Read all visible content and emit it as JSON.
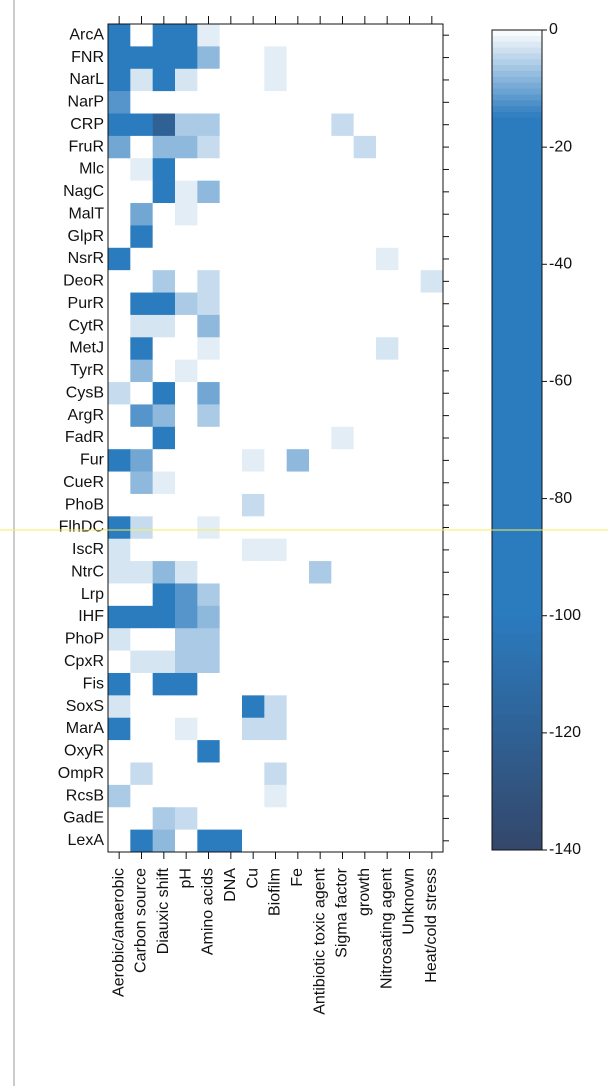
{
  "chart_data": {
    "type": "heatmap",
    "columns": [
      "Aerobic/anaerobic",
      "Carbon source",
      "Diauxic shift",
      "pH",
      "Amino acids",
      "DNA",
      "Cu",
      "Biofilm",
      "Fe",
      "Antibiotic toxic agent",
      "Sigma factor",
      "growth",
      "Nitrosating agent",
      "Unknown",
      "Heat/cold stress"
    ],
    "rows": [
      "ArcA",
      "FNR",
      "NarL",
      "NarP",
      "CRP",
      "FruR",
      "Mlc",
      "NagC",
      "MalT",
      "GlpR",
      "NsrR",
      "DeoR",
      "PurR",
      "CytR",
      "MetJ",
      "TyrR",
      "CysB",
      "ArgR",
      "FadR",
      "Fur",
      "CueR",
      "PhoB",
      "FlhDC",
      "IscR",
      "NtrC",
      "Lrp",
      "IHF",
      "PhoP",
      "CpxR",
      "Fis",
      "SoxS",
      "MarA",
      "OxyR",
      "OmpR",
      "RcsB",
      "GadE",
      "LexA"
    ],
    "values": [
      [
        -30,
        0,
        -30,
        -30,
        -2,
        0,
        0,
        0,
        0,
        0,
        0,
        0,
        0,
        0,
        0
      ],
      [
        -30,
        -30,
        -30,
        -30,
        -8,
        0,
        0,
        -2,
        0,
        0,
        0,
        0,
        0,
        0,
        0
      ],
      [
        -30,
        -3,
        -25,
        -3,
        0,
        0,
        0,
        -2,
        0,
        0,
        0,
        0,
        0,
        0,
        0
      ],
      [
        -12,
        0,
        0,
        0,
        0,
        0,
        0,
        0,
        0,
        0,
        0,
        0,
        0,
        0,
        0
      ],
      [
        -25,
        -25,
        -120,
        -6,
        -6,
        0,
        0,
        0,
        0,
        0,
        -4,
        0,
        0,
        0,
        0
      ],
      [
        -10,
        0,
        -8,
        -8,
        -4,
        0,
        0,
        0,
        0,
        0,
        0,
        -4,
        0,
        0,
        0
      ],
      [
        0,
        -2,
        -25,
        0,
        0,
        0,
        0,
        0,
        0,
        0,
        0,
        0,
        0,
        0,
        0
      ],
      [
        0,
        0,
        -15,
        -2,
        -8,
        0,
        0,
        0,
        0,
        0,
        0,
        0,
        0,
        0,
        0
      ],
      [
        0,
        -10,
        0,
        -2,
        0,
        0,
        0,
        0,
        0,
        0,
        0,
        0,
        0,
        0,
        0
      ],
      [
        0,
        -25,
        0,
        0,
        0,
        0,
        0,
        0,
        0,
        0,
        0,
        0,
        0,
        0,
        0
      ],
      [
        -15,
        0,
        0,
        0,
        0,
        0,
        0,
        0,
        0,
        0,
        0,
        0,
        -2,
        0,
        0
      ],
      [
        0,
        0,
        -6,
        0,
        -4,
        0,
        0,
        0,
        0,
        0,
        0,
        0,
        0,
        0,
        -3
      ],
      [
        0,
        -25,
        -20,
        -6,
        -4,
        0,
        0,
        0,
        0,
        0,
        0,
        0,
        0,
        0,
        0
      ],
      [
        0,
        -3,
        -3,
        0,
        -8,
        0,
        0,
        0,
        0,
        0,
        0,
        0,
        0,
        0,
        0
      ],
      [
        0,
        -25,
        0,
        0,
        -2,
        0,
        0,
        0,
        0,
        0,
        0,
        0,
        -3,
        0,
        0
      ],
      [
        0,
        -8,
        0,
        -2,
        0,
        0,
        0,
        0,
        0,
        0,
        0,
        0,
        0,
        0,
        0
      ],
      [
        -4,
        0,
        -25,
        0,
        -10,
        0,
        0,
        0,
        0,
        0,
        0,
        0,
        0,
        0,
        0
      ],
      [
        0,
        -12,
        -8,
        0,
        -6,
        0,
        0,
        0,
        0,
        0,
        0,
        0,
        0,
        0,
        0
      ],
      [
        0,
        0,
        -18,
        0,
        0,
        0,
        0,
        0,
        0,
        0,
        -2,
        0,
        0,
        0,
        0
      ],
      [
        -30,
        -10,
        0,
        0,
        0,
        0,
        -2,
        0,
        -8,
        0,
        0,
        0,
        0,
        0,
        0
      ],
      [
        0,
        -8,
        -2,
        0,
        0,
        0,
        0,
        0,
        0,
        0,
        0,
        0,
        0,
        0,
        0
      ],
      [
        0,
        0,
        0,
        0,
        0,
        0,
        -4,
        0,
        0,
        0,
        0,
        0,
        0,
        0,
        0
      ],
      [
        -30,
        -4,
        0,
        0,
        -2,
        0,
        0,
        0,
        0,
        0,
        0,
        0,
        0,
        0,
        0
      ],
      [
        -3,
        0,
        0,
        0,
        0,
        0,
        -2,
        -2,
        0,
        0,
        0,
        0,
        0,
        0,
        0
      ],
      [
        -3,
        -3,
        -8,
        -3,
        0,
        0,
        0,
        0,
        0,
        -6,
        0,
        0,
        0,
        0,
        0
      ],
      [
        0,
        0,
        -30,
        -12,
        -6,
        0,
        0,
        0,
        0,
        0,
        0,
        0,
        0,
        0,
        0
      ],
      [
        -30,
        -30,
        -30,
        -12,
        -8,
        0,
        0,
        0,
        0,
        0,
        0,
        0,
        0,
        0,
        0
      ],
      [
        -3,
        0,
        0,
        -6,
        -6,
        0,
        0,
        0,
        0,
        0,
        0,
        0,
        0,
        0,
        0
      ],
      [
        0,
        -3,
        -3,
        -6,
        -6,
        0,
        0,
        0,
        0,
        0,
        0,
        0,
        0,
        0,
        0
      ],
      [
        -30,
        0,
        -30,
        -20,
        0,
        0,
        0,
        0,
        0,
        0,
        0,
        0,
        0,
        0,
        0
      ],
      [
        -3,
        0,
        0,
        0,
        0,
        0,
        -15,
        -4,
        0,
        0,
        0,
        0,
        0,
        0,
        0
      ],
      [
        -15,
        0,
        0,
        -2,
        0,
        0,
        -4,
        -4,
        0,
        0,
        0,
        0,
        0,
        0,
        0
      ],
      [
        0,
        0,
        0,
        0,
        -25,
        0,
        0,
        0,
        0,
        0,
        0,
        0,
        0,
        0,
        0
      ],
      [
        0,
        -4,
        0,
        0,
        0,
        0,
        0,
        -4,
        0,
        0,
        0,
        0,
        0,
        0,
        0
      ],
      [
        -6,
        0,
        0,
        0,
        0,
        0,
        0,
        -2,
        0,
        0,
        0,
        0,
        0,
        0,
        0
      ],
      [
        0,
        0,
        -6,
        -4,
        0,
        0,
        0,
        0,
        0,
        0,
        0,
        0,
        0,
        0,
        0
      ],
      [
        0,
        -25,
        -8,
        0,
        -15,
        -30,
        0,
        0,
        0,
        0,
        0,
        0,
        0,
        0,
        0
      ]
    ],
    "colorscale": [
      [
        0,
        "#ffffff"
      ],
      [
        -15,
        "#2b7bbf"
      ],
      [
        -100,
        "#2b7bbf"
      ],
      [
        -140,
        "#34476a"
      ]
    ],
    "clim": [
      0,
      -140
    ],
    "cticks": [
      0,
      -20,
      -40,
      -60,
      -80,
      -100,
      -120,
      -140
    ]
  }
}
